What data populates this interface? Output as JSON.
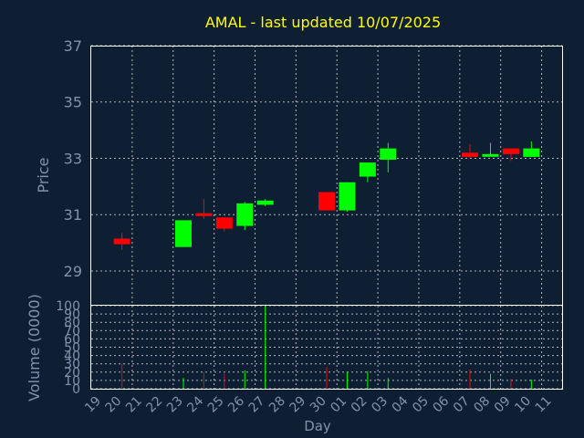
{
  "title": "AMAL - last updated 10/07/2025",
  "colors": {
    "up": "#00ff00",
    "down": "#ff0000",
    "background": "#0f1f33",
    "text": "#7f93ad",
    "title": "#ffff00"
  },
  "chart_data": [
    {
      "type": "candlestick",
      "ylabel": "Price",
      "ylim": [
        27.8,
        37
      ],
      "yticks": [
        "29",
        "31",
        "33",
        "35",
        "37"
      ],
      "grid": true,
      "candles": [
        {
          "day": "20",
          "open": 30.15,
          "close": 29.95,
          "high": 30.35,
          "low": 29.75
        },
        {
          "day": "23",
          "open": 29.85,
          "close": 30.8,
          "high": 30.8,
          "low": 29.85
        },
        {
          "day": "24",
          "open": 31.05,
          "close": 30.95,
          "high": 31.55,
          "low": 30.85
        },
        {
          "day": "25",
          "open": 30.9,
          "close": 30.5,
          "high": 30.9,
          "low": 30.4
        },
        {
          "day": "26",
          "open": 30.6,
          "close": 31.4,
          "high": 31.45,
          "low": 30.45
        },
        {
          "day": "27",
          "open": 31.35,
          "close": 31.5,
          "high": 31.55,
          "low": 31.3
        },
        {
          "day": "30",
          "open": 31.8,
          "close": 31.15,
          "high": 31.8,
          "low": 31.15
        },
        {
          "day": "01",
          "open": 31.15,
          "close": 32.15,
          "high": 32.15,
          "low": 31.1
        },
        {
          "day": "02",
          "open": 32.35,
          "close": 32.85,
          "high": 32.85,
          "low": 32.15
        },
        {
          "day": "03",
          "open": 32.95,
          "close": 33.35,
          "high": 33.55,
          "low": 32.5
        },
        {
          "day": "07",
          "open": 33.2,
          "close": 33.05,
          "high": 33.5,
          "low": 33.0
        },
        {
          "day": "08",
          "open": 33.1,
          "close": 33.15,
          "high": 33.55,
          "low": 33.1
        },
        {
          "day": "09",
          "open": 33.35,
          "close": 33.15,
          "high": 33.35,
          "low": 32.9
        },
        {
          "day": "10",
          "open": 33.05,
          "close": 33.35,
          "high": 33.6,
          "low": 33.05
        }
      ]
    },
    {
      "type": "bar",
      "ylabel": "Volume (0000)",
      "ylim": [
        0,
        100
      ],
      "yticks": [
        "0",
        "10",
        "20",
        "30",
        "40",
        "50",
        "60",
        "70",
        "80",
        "90",
        "100"
      ],
      "grid": true,
      "xlabel": "Day",
      "categories": [
        "19",
        "20",
        "21",
        "22",
        "23",
        "24",
        "25",
        "26",
        "27",
        "28",
        "29",
        "30",
        "01",
        "02",
        "03",
        "04",
        "05",
        "06",
        "07",
        "08",
        "09",
        "10",
        "11"
      ],
      "volumes": [
        {
          "day": "20",
          "value": 30,
          "dir": "down"
        },
        {
          "day": "23",
          "value": 13,
          "dir": "up"
        },
        {
          "day": "24",
          "value": 20,
          "dir": "down"
        },
        {
          "day": "25",
          "value": 18,
          "dir": "down"
        },
        {
          "day": "26",
          "value": 22,
          "dir": "up"
        },
        {
          "day": "27",
          "value": 100,
          "dir": "up"
        },
        {
          "day": "30",
          "value": 26,
          "dir": "down"
        },
        {
          "day": "01",
          "value": 20,
          "dir": "up"
        },
        {
          "day": "02",
          "value": 21,
          "dir": "up"
        },
        {
          "day": "03",
          "value": 13,
          "dir": "up"
        },
        {
          "day": "07",
          "value": 23,
          "dir": "down"
        },
        {
          "day": "08",
          "value": 18,
          "dir": "up"
        },
        {
          "day": "09",
          "value": 12,
          "dir": "down"
        },
        {
          "day": "10",
          "value": 11,
          "dir": "up"
        }
      ]
    }
  ]
}
